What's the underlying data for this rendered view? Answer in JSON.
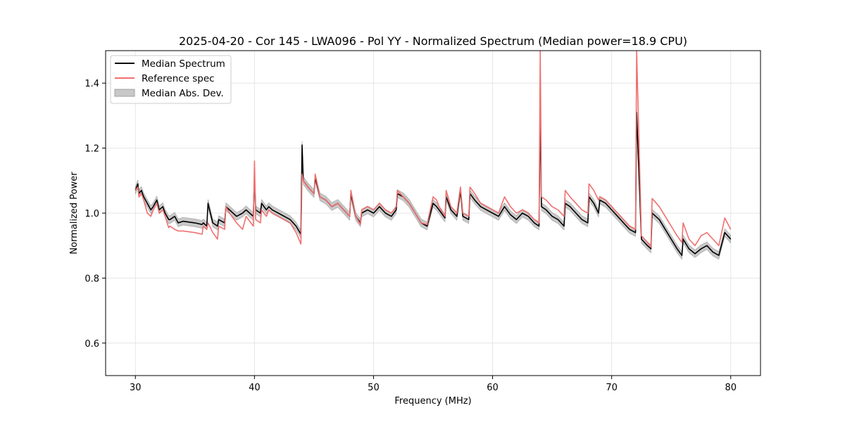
{
  "chart_data": {
    "type": "line",
    "title": "2025-04-20 - Cor 145 - LWA096 - Pol YY - Normalized Spectrum (Median power=18.9 CPU)",
    "xlabel": "Frequency (MHz)",
    "ylabel": "Normalized Power",
    "xlim": [
      27.5,
      82.5
    ],
    "ylim": [
      0.5,
      1.5
    ],
    "xticks": [
      30,
      40,
      50,
      60,
      70,
      80
    ],
    "yticks": [
      0.6,
      0.8,
      1.0,
      1.2,
      1.4
    ],
    "xtick_labels": [
      "30",
      "40",
      "50",
      "60",
      "70",
      "80"
    ],
    "ytick_labels": [
      "0.6",
      "0.8",
      "1.0",
      "1.2",
      "1.4"
    ],
    "grid": true,
    "legend_position": "top-left",
    "legend": [
      "Median Spectrum",
      "Reference spec",
      "Median Abs. Dev."
    ],
    "colors": {
      "median": "#000000",
      "reference": "#f07070",
      "mad_fill": "#c8c8c8",
      "mad_edge": "#a0a0a0"
    },
    "series": [
      {
        "name": "Median Spectrum",
        "x": [
          30.0,
          30.2,
          30.3,
          30.5,
          30.7,
          31.0,
          31.3,
          31.5,
          31.8,
          32.0,
          32.3,
          32.5,
          32.8,
          32.9,
          33.3,
          33.6,
          34.0,
          35.0,
          35.6,
          35.7,
          36.0,
          36.1,
          36.5,
          36.9,
          37.0,
          37.5,
          37.6,
          37.9,
          38.5,
          39.0,
          39.3,
          39.9,
          40.0,
          40.1,
          40.5,
          40.6,
          41.0,
          41.2,
          41.5,
          42.0,
          43.0,
          43.5,
          43.9,
          44.0,
          44.1,
          44.5,
          45.0,
          45.1,
          45.5,
          46.0,
          46.5,
          47.0,
          47.5,
          48.0,
          48.1,
          48.5,
          48.9,
          49.0,
          49.5,
          50.0,
          50.5,
          51.0,
          51.5,
          51.9,
          52.0,
          52.5,
          53.0,
          53.5,
          54.0,
          54.5,
          55.0,
          55.3,
          55.5,
          56.0,
          56.1,
          56.5,
          57.0,
          57.3,
          57.5,
          58.0,
          58.1,
          58.5,
          59.0,
          59.5,
          60.0,
          60.5,
          61.0,
          61.5,
          62.0,
          62.5,
          63.0,
          63.5,
          63.9,
          64.0,
          64.1,
          64.5,
          65.0,
          65.5,
          66.0,
          66.1,
          66.5,
          67.0,
          67.5,
          68.0,
          68.1,
          68.5,
          68.9,
          69.0,
          69.5,
          70.0,
          70.5,
          71.0,
          71.5,
          72.0,
          72.1,
          72.5,
          73.0,
          73.3,
          73.4,
          74.0,
          74.5,
          75.0,
          75.5,
          75.9,
          76.0,
          76.5,
          77.0,
          77.5,
          78.0,
          78.5,
          79.0,
          79.5,
          80.0
        ],
        "y": [
          1.07,
          1.09,
          1.06,
          1.07,
          1.05,
          1.03,
          1.01,
          1.02,
          1.04,
          1.01,
          1.02,
          1.0,
          0.98,
          0.98,
          0.99,
          0.97,
          0.975,
          0.97,
          0.965,
          0.97,
          0.96,
          1.03,
          0.97,
          0.96,
          0.98,
          0.97,
          1.02,
          1.01,
          0.99,
          1.0,
          1.01,
          0.99,
          1.11,
          1.01,
          1.0,
          1.03,
          1.01,
          1.02,
          1.01,
          1.0,
          0.98,
          0.96,
          0.935,
          1.21,
          1.1,
          1.08,
          1.06,
          1.11,
          1.05,
          1.04,
          1.02,
          1.03,
          1.01,
          0.99,
          1.06,
          0.99,
          0.97,
          1.0,
          1.01,
          1.0,
          1.02,
          1.0,
          0.99,
          1.01,
          1.06,
          1.05,
          1.03,
          1.0,
          0.97,
          0.96,
          1.03,
          1.02,
          1.01,
          0.985,
          1.05,
          1.01,
          0.99,
          1.07,
          0.99,
          0.98,
          1.06,
          1.04,
          1.02,
          1.01,
          1.0,
          0.99,
          1.02,
          0.995,
          0.98,
          1.0,
          0.99,
          0.97,
          0.96,
          1.33,
          1.02,
          1.01,
          0.99,
          0.98,
          0.96,
          1.03,
          1.02,
          1.0,
          0.98,
          0.97,
          1.05,
          1.03,
          1.0,
          1.04,
          1.03,
          1.01,
          0.99,
          0.97,
          0.95,
          0.94,
          1.31,
          0.92,
          0.9,
          0.89,
          1.0,
          0.98,
          0.95,
          0.92,
          0.89,
          0.87,
          0.92,
          0.89,
          0.875,
          0.89,
          0.9,
          0.88,
          0.87,
          0.94,
          0.92
        ]
      },
      {
        "name": "Reference spec",
        "x": [
          30.0,
          30.2,
          30.3,
          30.5,
          30.7,
          31.0,
          31.3,
          31.5,
          31.8,
          32.0,
          32.3,
          32.5,
          32.8,
          32.9,
          33.3,
          33.6,
          34.0,
          35.0,
          35.6,
          35.7,
          36.0,
          36.1,
          36.5,
          36.9,
          37.0,
          37.5,
          37.6,
          37.9,
          38.5,
          39.0,
          39.3,
          39.9,
          40.0,
          40.1,
          40.5,
          40.6,
          41.0,
          41.2,
          41.5,
          42.0,
          43.0,
          43.5,
          43.9,
          44.0,
          44.1,
          44.5,
          45.0,
          45.1,
          45.5,
          46.0,
          46.5,
          47.0,
          47.5,
          48.0,
          48.1,
          48.5,
          48.9,
          49.0,
          49.5,
          50.0,
          50.5,
          51.0,
          51.5,
          51.9,
          52.0,
          52.5,
          53.0,
          53.5,
          54.0,
          54.5,
          55.0,
          55.3,
          55.5,
          56.0,
          56.1,
          56.5,
          57.0,
          57.3,
          57.5,
          58.0,
          58.1,
          58.5,
          59.0,
          59.5,
          60.0,
          60.5,
          61.0,
          61.5,
          62.0,
          62.5,
          63.0,
          63.5,
          63.9,
          64.0,
          64.1,
          64.5,
          65.0,
          65.5,
          66.0,
          66.1,
          66.5,
          67.0,
          67.5,
          68.0,
          68.1,
          68.5,
          68.9,
          69.0,
          69.5,
          70.0,
          70.5,
          71.0,
          71.5,
          72.0,
          72.1,
          72.5,
          73.0,
          73.3,
          73.4,
          74.0,
          74.5,
          75.0,
          75.5,
          75.9,
          76.0,
          76.5,
          77.0,
          77.5,
          78.0,
          78.5,
          79.0,
          79.5,
          80.0
        ],
        "y": [
          1.07,
          1.08,
          1.05,
          1.06,
          1.04,
          1.0,
          0.99,
          1.01,
          1.03,
          1.0,
          1.01,
          0.99,
          0.955,
          0.96,
          0.95,
          0.945,
          0.945,
          0.94,
          0.935,
          0.96,
          0.95,
          0.97,
          0.94,
          0.92,
          0.96,
          0.95,
          1.02,
          1.0,
          0.97,
          0.95,
          0.99,
          0.96,
          1.16,
          0.98,
          0.97,
          1.01,
          0.99,
          1.01,
          1.0,
          0.99,
          0.97,
          0.94,
          0.905,
          1.12,
          1.1,
          1.08,
          1.06,
          1.12,
          1.05,
          1.04,
          1.02,
          1.03,
          1.01,
          0.99,
          1.07,
          0.99,
          0.965,
          1.01,
          1.02,
          1.01,
          1.03,
          1.01,
          1.0,
          1.02,
          1.07,
          1.05,
          1.03,
          1.0,
          0.97,
          0.965,
          1.05,
          1.04,
          1.02,
          0.99,
          1.07,
          1.02,
          1.0,
          1.08,
          1.0,
          0.99,
          1.08,
          1.06,
          1.03,
          1.02,
          1.01,
          1.0,
          1.05,
          1.02,
          1.0,
          1.01,
          1.0,
          0.98,
          0.97,
          1.5,
          1.05,
          1.04,
          1.02,
          1.01,
          0.99,
          1.07,
          1.05,
          1.03,
          1.01,
          1.0,
          1.09,
          1.07,
          1.04,
          1.05,
          1.04,
          1.02,
          1.0,
          0.98,
          0.96,
          0.95,
          1.5,
          0.93,
          0.91,
          0.895,
          1.045,
          1.02,
          0.99,
          0.96,
          0.93,
          0.91,
          0.97,
          0.92,
          0.9,
          0.93,
          0.94,
          0.92,
          0.9,
          0.985,
          0.95
        ]
      }
    ],
    "mad_halfwidth": 0.012
  }
}
